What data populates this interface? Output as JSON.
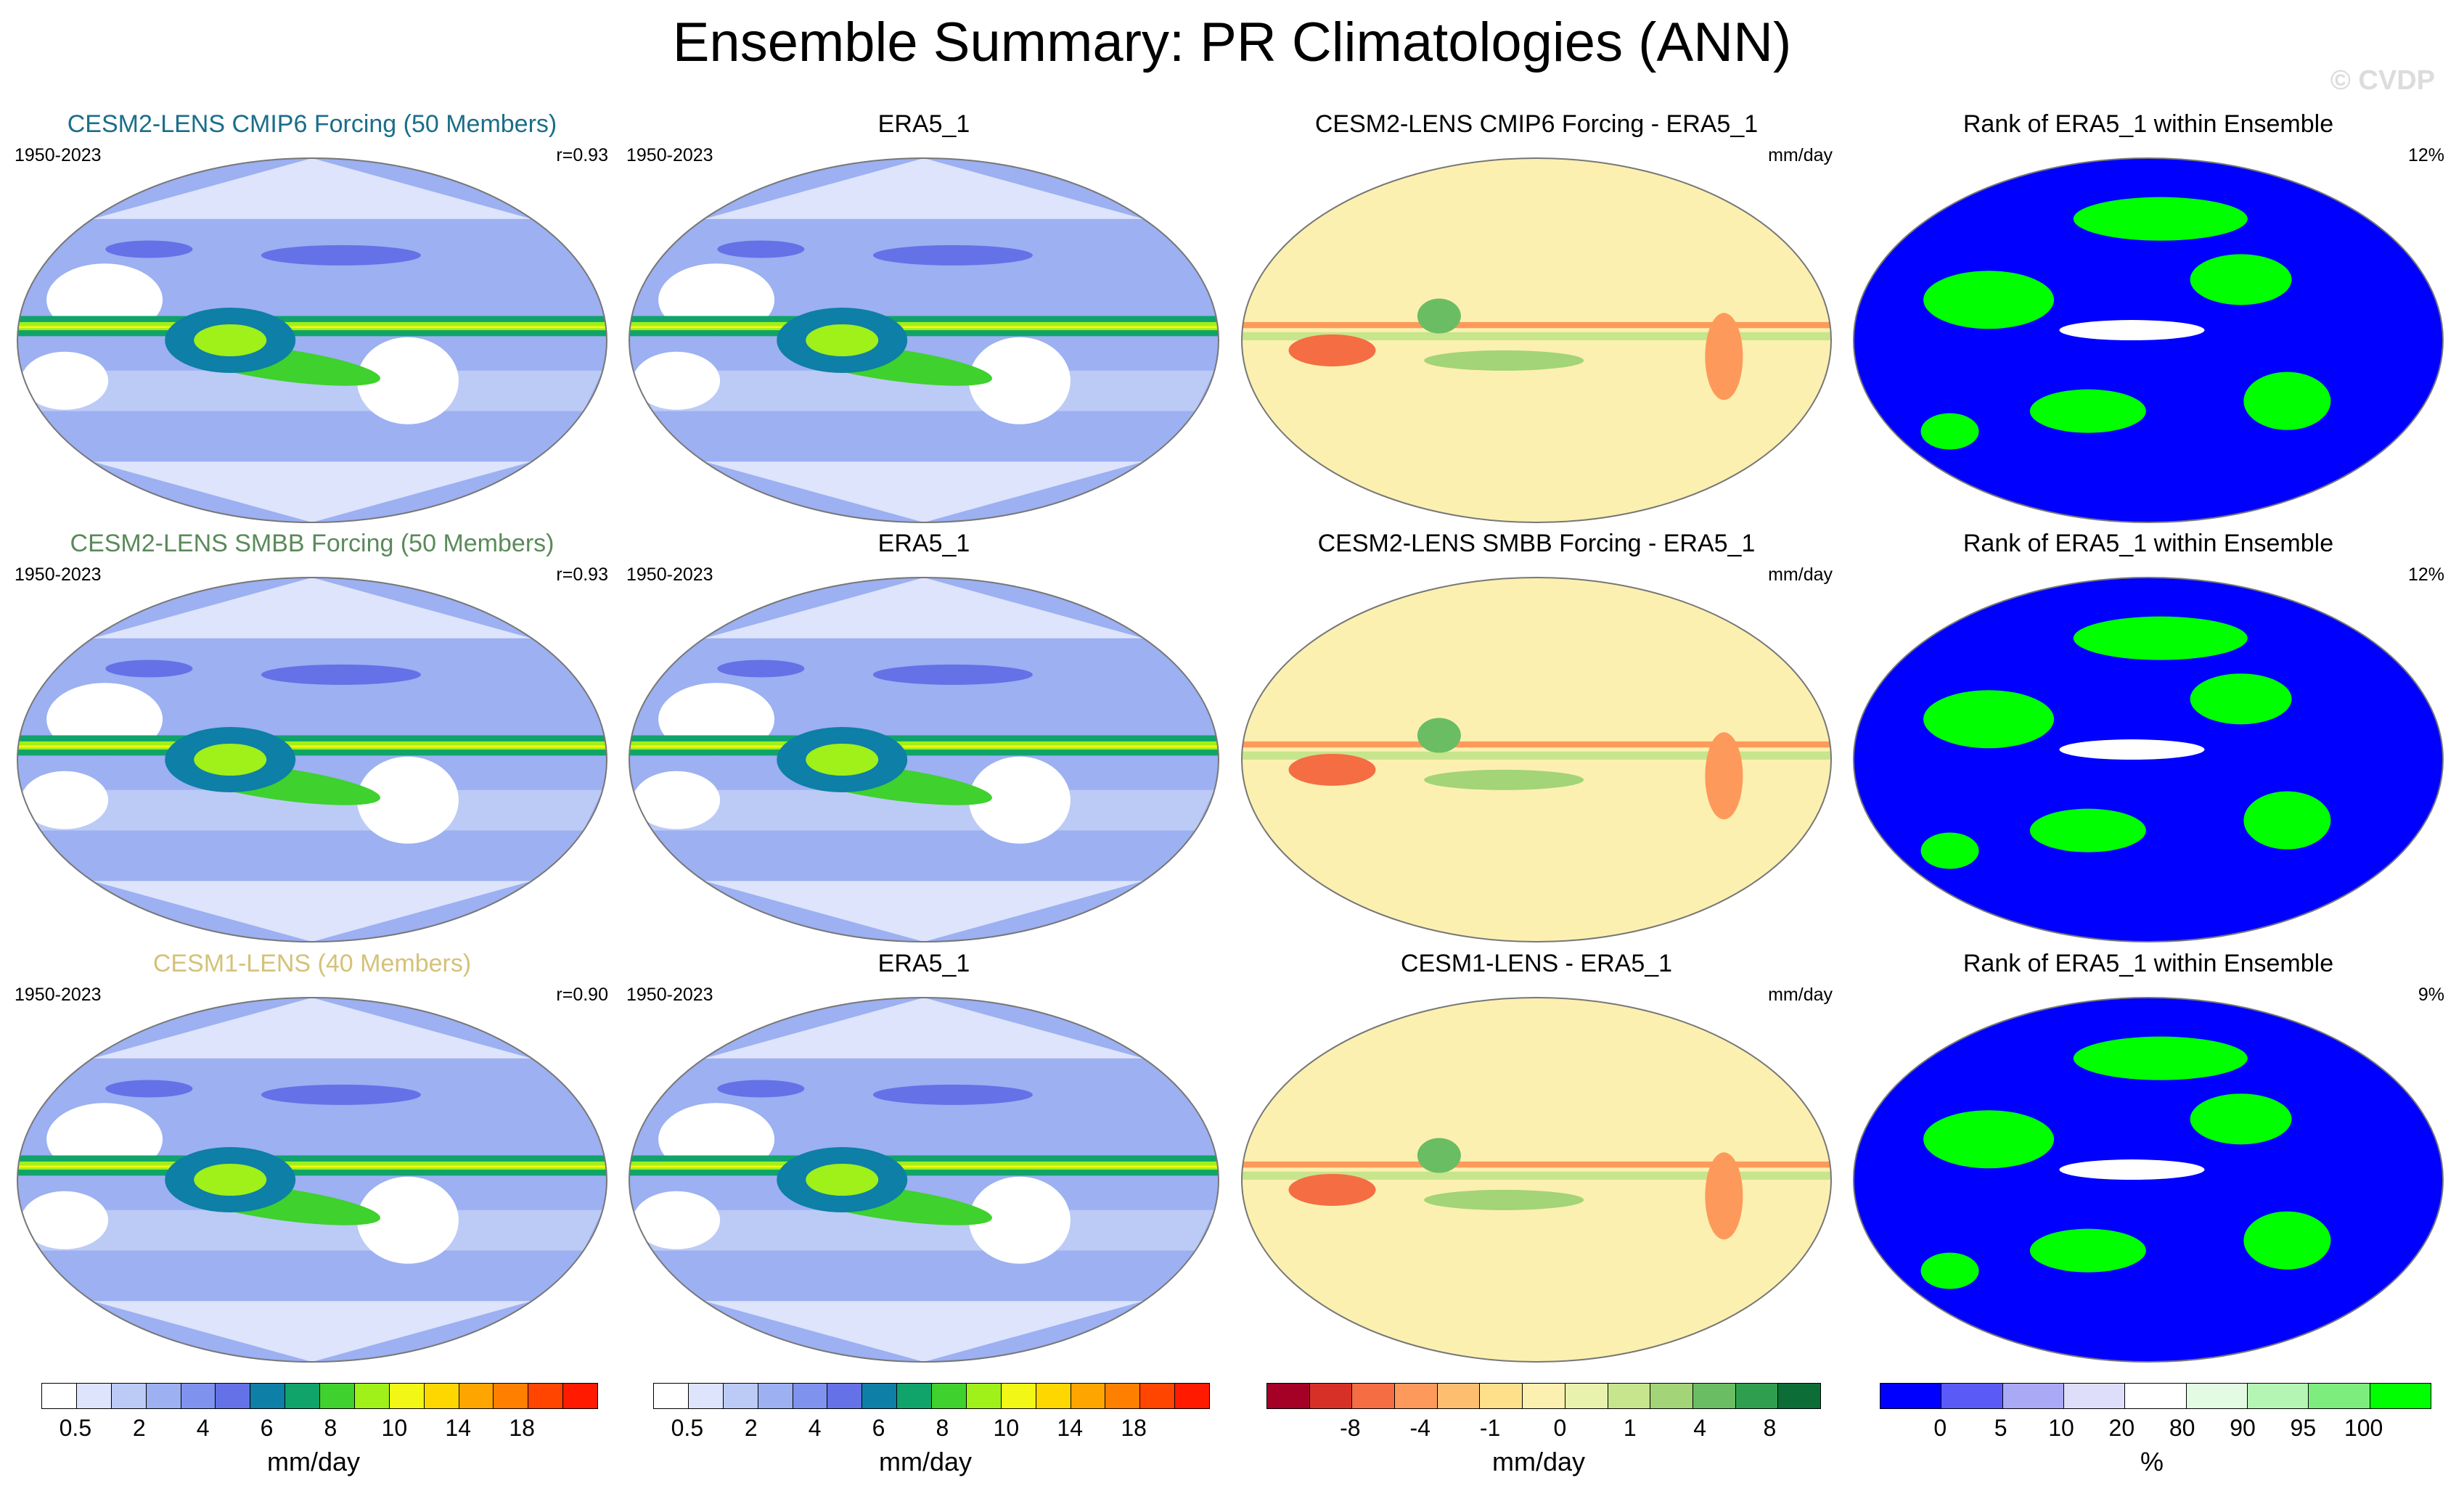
{
  "header": {
    "title": "Ensemble Summary: PR Climatologies (ANN)",
    "watermark": "© CVDP"
  },
  "panels": [
    {
      "title": "CESM2-LENS CMIP6 Forcing (50 Members)",
      "title_color": "#1a6e8a",
      "left": "1950-2023",
      "right": "r=0.93",
      "kind": "pr"
    },
    {
      "title": "ERA5_1",
      "title_color": "#000000",
      "left": "1950-2023",
      "right": "",
      "kind": "pr"
    },
    {
      "title": "CESM2-LENS CMIP6 Forcing - ERA5_1",
      "title_color": "#000000",
      "left": "",
      "right": "mm/day",
      "kind": "diff"
    },
    {
      "title": "Rank of ERA5_1 within Ensemble",
      "title_color": "#000000",
      "left": "",
      "right": "12%",
      "kind": "rank"
    },
    {
      "title": "CESM2-LENS SMBB Forcing (50 Members)",
      "title_color": "#5a8a5a",
      "left": "1950-2023",
      "right": "r=0.93",
      "kind": "pr"
    },
    {
      "title": "ERA5_1",
      "title_color": "#000000",
      "left": "1950-2023",
      "right": "",
      "kind": "pr"
    },
    {
      "title": "CESM2-LENS SMBB Forcing - ERA5_1",
      "title_color": "#000000",
      "left": "",
      "right": "mm/day",
      "kind": "diff"
    },
    {
      "title": "Rank of ERA5_1 within Ensemble",
      "title_color": "#000000",
      "left": "",
      "right": "12%",
      "kind": "rank"
    },
    {
      "title": "CESM1-LENS (40 Members)",
      "title_color": "#d4c27a",
      "left": "1950-2023",
      "right": "r=0.90",
      "kind": "pr"
    },
    {
      "title": "ERA5_1",
      "title_color": "#000000",
      "left": "1950-2023",
      "right": "",
      "kind": "pr"
    },
    {
      "title": "CESM1-LENS - ERA5_1",
      "title_color": "#000000",
      "left": "",
      "right": "mm/day",
      "kind": "diff"
    },
    {
      "title": "Rank of ERA5_1 within Ensemble",
      "title_color": "#000000",
      "left": "",
      "right": "9%",
      "kind": "rank"
    }
  ],
  "colorbars": [
    {
      "colors": [
        "#ffffff",
        "#dde4fb",
        "#bccaf6",
        "#9cb0f2",
        "#7f93ee",
        "#6571e7",
        "#0e7fa6",
        "#10a36a",
        "#3fd12d",
        "#a0f01a",
        "#f3f715",
        "#ffd700",
        "#ffa500",
        "#ff7f00",
        "#ff4500",
        "#ff1a00"
      ],
      "labels": [
        "0.5",
        "2",
        "4",
        "6",
        "8",
        "10",
        "14",
        "18"
      ],
      "unit": "mm/day"
    },
    {
      "colors": [
        "#ffffff",
        "#dde4fb",
        "#bccaf6",
        "#9cb0f2",
        "#7f93ee",
        "#6571e7",
        "#0e7fa6",
        "#10a36a",
        "#3fd12d",
        "#a0f01a",
        "#f3f715",
        "#ffd700",
        "#ffa500",
        "#ff7f00",
        "#ff4500",
        "#ff1a00"
      ],
      "labels": [
        "0.5",
        "2",
        "4",
        "6",
        "8",
        "10",
        "14",
        "18"
      ],
      "unit": "mm/day"
    },
    {
      "colors": [
        "#a50026",
        "#d73027",
        "#f46d43",
        "#fd9a5b",
        "#fdbf6f",
        "#fee08b",
        "#fbf0b0",
        "#e9f2ad",
        "#c7e58c",
        "#a3d477",
        "#6abd63",
        "#2f9f4f",
        "#0c6e36"
      ],
      "labels": [
        "-8",
        "-4",
        "-1",
        "0",
        "1",
        "4",
        "8"
      ],
      "unit": "mm/day"
    },
    {
      "colors": [
        "#0000ff",
        "#5a5af7",
        "#a9a9f5",
        "#dedefa",
        "#ffffff",
        "#e3fbe3",
        "#b4f5b4",
        "#7dee7d",
        "#00ff00"
      ],
      "labels": [
        "0",
        "5",
        "10",
        "20",
        "80",
        "90",
        "95",
        "100"
      ],
      "unit": "%"
    }
  ]
}
